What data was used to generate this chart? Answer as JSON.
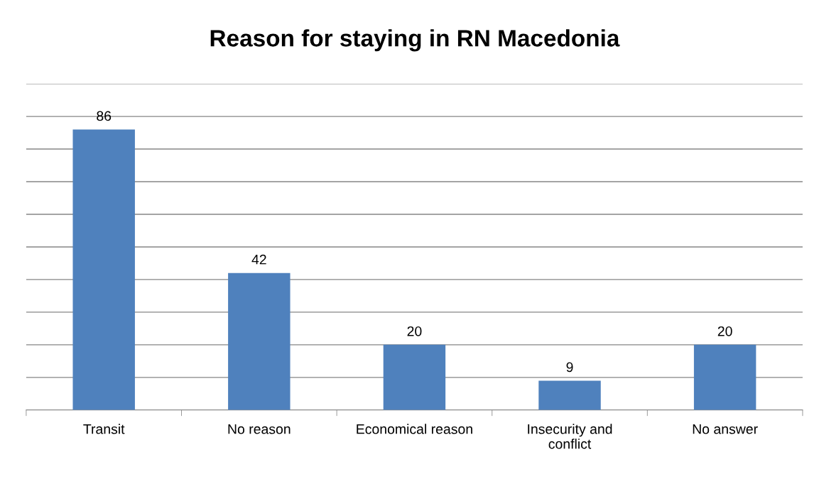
{
  "chart_data": {
    "type": "bar",
    "title": "Reason for staying in RN Macedonia",
    "categories": [
      "Transit",
      "No reason",
      "Economical reason",
      "Insecurity and\nconflict",
      "No answer"
    ],
    "values": [
      86,
      42,
      20,
      9,
      20
    ],
    "color": "#4f81bd",
    "ylim": [
      0,
      100
    ],
    "yticks": [
      {
        "value": 0,
        "label": null
      },
      {
        "value": 10,
        "label": null
      },
      {
        "value": 20,
        "label": null
      },
      {
        "value": 30,
        "label": null
      },
      {
        "value": 40,
        "label": null
      },
      {
        "value": 50,
        "label": null
      },
      {
        "value": 60,
        "label": null
      },
      {
        "value": 70,
        "label": null
      },
      {
        "value": 80,
        "label": null
      },
      {
        "value": 90,
        "label": null
      },
      {
        "value": 100,
        "label": null
      }
    ],
    "tick_labels": "x",
    "grid": "y",
    "data_labels": true
  }
}
